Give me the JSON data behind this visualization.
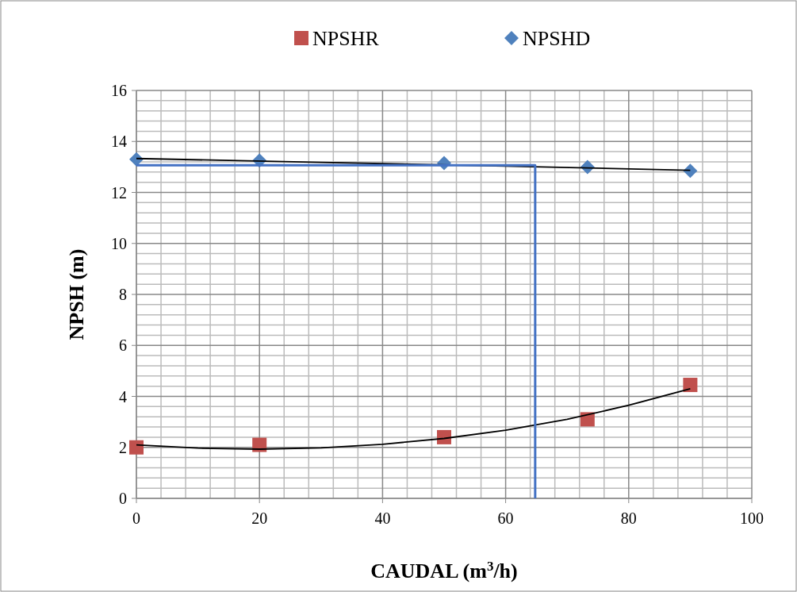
{
  "chart_data": {
    "type": "scatter",
    "xlabel": "CAUDAL (m$^{3}$/h)",
    "ylabel": "NPSH (m)",
    "xlim": [
      0,
      100
    ],
    "xticks": [
      0,
      20,
      40,
      60,
      80,
      100
    ],
    "ylim": [
      0,
      16
    ],
    "yticks": [
      0,
      2,
      4,
      6,
      8,
      10,
      12,
      14,
      16
    ],
    "grid": true,
    "legend": "top",
    "series": [
      {
        "name": "NPSHR",
        "marker": "square",
        "color": "#c0504d",
        "x": [
          0,
          20,
          50,
          73.3,
          90
        ],
        "values": [
          2.0,
          2.1,
          2.4,
          3.1,
          4.45
        ]
      },
      {
        "name": "NPSHD",
        "marker": "diamond",
        "color": "#4f81bd",
        "x": [
          0,
          20,
          50,
          73.3,
          90
        ],
        "values": [
          13.3,
          13.25,
          13.15,
          13.0,
          12.85
        ]
      },
      {
        "type": "line",
        "marker": "none",
        "color": "#000000",
        "x": [
          0,
          10,
          20,
          30,
          40,
          50,
          60,
          70,
          80,
          90
        ],
        "values": [
          2.1,
          1.97,
          1.93,
          1.98,
          2.12,
          2.35,
          2.67,
          3.1,
          3.65,
          4.3
        ]
      },
      {
        "type": "line",
        "marker": "none",
        "color": "#000000",
        "x": [
          0,
          30,
          60,
          90
        ],
        "values": [
          13.33,
          13.18,
          13.03,
          12.87
        ]
      },
      {
        "type": "line",
        "marker": "none",
        "color": "#4472c4",
        "x": [
          0,
          64.8,
          64.8
        ],
        "values": [
          13.07,
          13.07,
          0
        ]
      }
    ]
  }
}
